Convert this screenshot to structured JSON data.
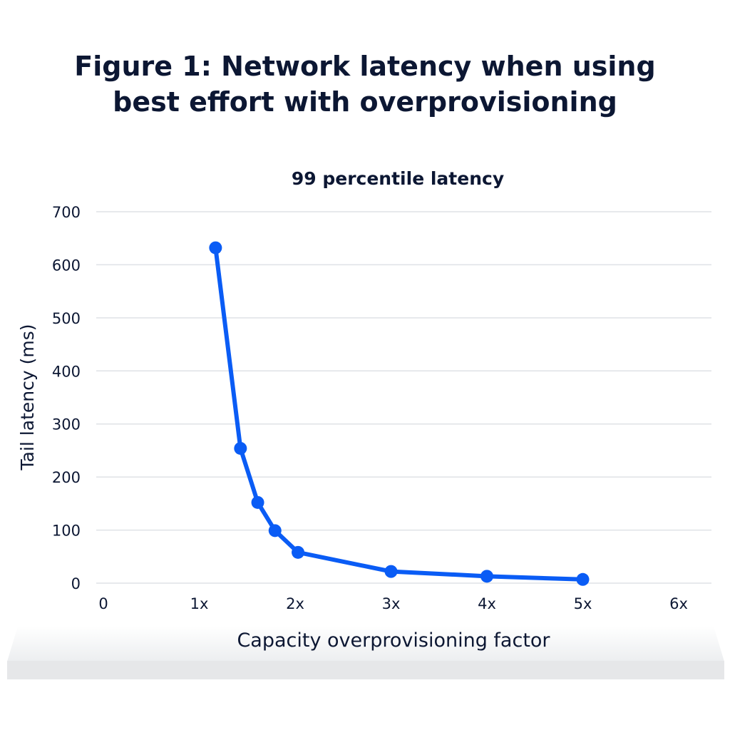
{
  "title_line1": "Figure 1: Network latency when using",
  "title_line2": "best effort with overprovisioning",
  "chart_data": {
    "type": "line",
    "title": "99 percentile latency",
    "xlabel": "Capacity overprovisioning factor",
    "ylabel": "Tail latency  (ms)",
    "xlim": [
      0,
      6
    ],
    "ylim": [
      0,
      700
    ],
    "xticks": [
      0,
      1,
      2,
      3,
      4,
      5,
      6
    ],
    "xtick_labels": [
      "0",
      "1x",
      "2x",
      "3x",
      "4x",
      "5x",
      "6x"
    ],
    "yticks": [
      0,
      100,
      200,
      300,
      400,
      500,
      600,
      700
    ],
    "ytick_labels": [
      "0",
      "100",
      "200",
      "300",
      "400",
      "500",
      "600",
      "700"
    ],
    "grid": "horizontal",
    "color": "#0a5cf5",
    "series": [
      {
        "x": [
          1.17,
          1.43,
          1.61,
          1.79,
          2.03,
          3,
          4,
          5
        ],
        "y": [
          632,
          254,
          152,
          99,
          58,
          22,
          13,
          7
        ]
      }
    ]
  }
}
